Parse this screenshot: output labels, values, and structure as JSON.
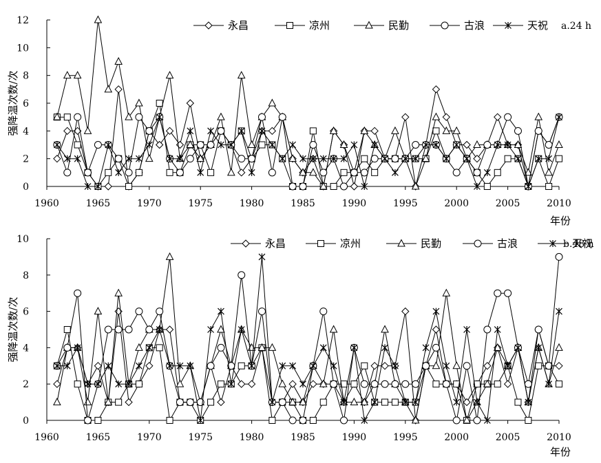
{
  "chart_data": [
    {
      "type": "line",
      "panel_label": "a.24 h",
      "ylabel": "强降温次数/次",
      "xlabel": "年份",
      "xlim": [
        1960,
        2010
      ],
      "ylim": [
        0,
        12
      ],
      "x_ticks": [
        1960,
        1965,
        1970,
        1975,
        1980,
        1985,
        1990,
        1995,
        2000,
        2005,
        2010
      ],
      "y_ticks": [
        0,
        2,
        4,
        6,
        8,
        10,
        12
      ],
      "grid": false,
      "legend_position": "top",
      "x": [
        1961,
        1962,
        1963,
        1964,
        1965,
        1966,
        1967,
        1968,
        1969,
        1970,
        1971,
        1972,
        1973,
        1974,
        1975,
        1976,
        1977,
        1978,
        1979,
        1980,
        1981,
        1982,
        1983,
        1984,
        1985,
        1986,
        1987,
        1988,
        1989,
        1990,
        1991,
        1992,
        1993,
        1994,
        1995,
        1996,
        1997,
        1998,
        1999,
        2000,
        2001,
        2002,
        2003,
        2004,
        2005,
        2006,
        2007,
        2008,
        2009,
        2010
      ],
      "series": [
        {
          "name": "永昌",
          "marker": "diamond",
          "values": [
            2,
            4,
            4,
            1,
            0,
            0,
            7,
            0,
            1,
            4,
            3,
            4,
            3,
            6,
            2,
            3,
            4,
            3,
            1,
            2,
            4,
            4,
            5,
            2,
            1,
            2,
            0,
            4,
            3,
            0,
            4,
            4,
            2,
            2,
            5,
            0,
            3,
            7,
            5,
            3,
            3,
            2,
            3,
            5,
            3,
            3,
            0,
            4,
            3,
            5
          ]
        },
        {
          "name": "凉州",
          "marker": "square",
          "values": [
            5,
            5,
            3,
            1,
            0,
            1,
            2,
            0,
            1,
            4,
            6,
            1,
            1,
            3,
            3,
            1,
            4,
            3,
            4,
            2,
            3,
            3,
            2,
            0,
            0,
            4,
            0,
            0,
            1,
            1,
            2,
            1,
            2,
            2,
            2,
            2,
            2,
            4,
            2,
            3,
            2,
            1,
            0,
            1,
            2,
            2,
            0,
            2,
            0,
            2
          ]
        },
        {
          "name": "民勤",
          "marker": "triangle",
          "values": [
            5,
            8,
            8,
            4,
            12,
            7,
            9,
            5,
            6,
            2,
            5,
            8,
            2,
            3,
            2,
            3,
            5,
            1,
            8,
            3,
            5,
            6,
            5,
            2,
            1,
            1,
            0,
            4,
            3,
            1,
            4,
            3,
            2,
            4,
            2,
            0,
            2,
            5,
            4,
            4,
            2,
            3,
            3,
            3,
            3,
            3,
            1,
            5,
            1,
            3
          ]
        },
        {
          "name": "古浪",
          "marker": "circle",
          "values": [
            3,
            1,
            5,
            1,
            3,
            3,
            2,
            1,
            5,
            4,
            5,
            2,
            1,
            2,
            3,
            3,
            4,
            3,
            2,
            2,
            5,
            1,
            5,
            0,
            0,
            3,
            1,
            2,
            0,
            1,
            1,
            2,
            2,
            2,
            2,
            3,
            3,
            3,
            2,
            1,
            2,
            1,
            3,
            3,
            5,
            4,
            0,
            4,
            3,
            5
          ]
        },
        {
          "name": "天祝",
          "marker": "star",
          "values": [
            3,
            2,
            2,
            0,
            0,
            3,
            1,
            2,
            2,
            3,
            5,
            2,
            2,
            4,
            1,
            4,
            3,
            3,
            4,
            1,
            4,
            3,
            2,
            3,
            2,
            2,
            2,
            2,
            2,
            3,
            0,
            3,
            2,
            1,
            2,
            2,
            3,
            3,
            2,
            3,
            2,
            0,
            1,
            3,
            3,
            2,
            0,
            2,
            2,
            5
          ]
        }
      ]
    },
    {
      "type": "line",
      "panel_label": "b.48 h",
      "ylabel": "强降温次数/次",
      "xlabel": "年份",
      "xlim": [
        1960,
        2010
      ],
      "ylim": [
        0,
        10
      ],
      "x_ticks": [
        1960,
        1965,
        1970,
        1975,
        1980,
        1985,
        1990,
        1995,
        2000,
        2005,
        2010
      ],
      "y_ticks": [
        0,
        2,
        4,
        6,
        8,
        10
      ],
      "grid": false,
      "legend_position": "top",
      "x": [
        1961,
        1962,
        1963,
        1964,
        1965,
        1966,
        1967,
        1968,
        1969,
        1970,
        1971,
        1972,
        1973,
        1974,
        1975,
        1976,
        1977,
        1978,
        1979,
        1980,
        1981,
        1982,
        1983,
        1984,
        1985,
        1986,
        1987,
        1988,
        1989,
        1990,
        1991,
        1992,
        1993,
        1994,
        1995,
        1996,
        1997,
        1998,
        1999,
        2000,
        2001,
        2002,
        2003,
        2004,
        2005,
        2006,
        2007,
        2008,
        2009,
        2010
      ],
      "series": [
        {
          "name": "永昌",
          "marker": "diamond",
          "values": [
            2,
            4,
            4,
            2,
            3,
            1,
            6,
            1,
            2,
            3,
            5,
            5,
            1,
            1,
            1,
            3,
            1,
            3,
            2,
            2,
            4,
            1,
            1,
            2,
            1,
            2,
            2,
            2,
            1,
            2,
            1,
            3,
            3,
            3,
            6,
            0,
            3,
            5,
            2,
            2,
            1,
            2,
            3,
            4,
            2,
            4,
            1,
            5,
            3,
            3
          ]
        },
        {
          "name": "凉州",
          "marker": "square",
          "values": [
            3,
            5,
            2,
            0,
            0,
            1,
            1,
            2,
            2,
            4,
            4,
            0,
            1,
            1,
            0,
            1,
            2,
            2,
            3,
            3,
            4,
            0,
            1,
            1,
            0,
            0,
            1,
            2,
            2,
            2,
            3,
            1,
            1,
            1,
            1,
            1,
            3,
            2,
            2,
            2,
            0,
            2,
            2,
            2,
            3,
            1,
            0,
            3,
            3,
            2
          ]
        },
        {
          "name": "民勤",
          "marker": "triangle",
          "values": [
            1,
            4,
            4,
            1,
            6,
            1,
            7,
            2,
            4,
            5,
            5,
            9,
            2,
            3,
            1,
            3,
            5,
            3,
            5,
            4,
            4,
            4,
            2,
            1,
            1,
            3,
            2,
            5,
            1,
            1,
            1,
            2,
            5,
            2,
            1,
            0,
            3,
            3,
            7,
            3,
            0,
            1,
            2,
            4,
            3,
            4,
            1,
            4,
            2,
            4
          ]
        },
        {
          "name": "古浪",
          "marker": "circle",
          "values": [
            3,
            4,
            7,
            0,
            2,
            5,
            5,
            5,
            6,
            5,
            6,
            3,
            1,
            1,
            1,
            3,
            4,
            3,
            8,
            3,
            6,
            1,
            1,
            0,
            0,
            3,
            6,
            2,
            0,
            4,
            2,
            2,
            2,
            2,
            2,
            2,
            3,
            4,
            2,
            0,
            3,
            0,
            5,
            7,
            7,
            4,
            2,
            5,
            3,
            9
          ]
        },
        {
          "name": "天祝",
          "marker": "star",
          "values": [
            3,
            3,
            4,
            2,
            2,
            3,
            2,
            2,
            3,
            4,
            5,
            3,
            3,
            3,
            0,
            5,
            6,
            2,
            5,
            3,
            9,
            1,
            3,
            3,
            2,
            3,
            4,
            3,
            1,
            4,
            0,
            1,
            4,
            3,
            1,
            1,
            4,
            6,
            3,
            1,
            5,
            1,
            0,
            5,
            3,
            4,
            1,
            4,
            2,
            6
          ]
        }
      ]
    }
  ]
}
